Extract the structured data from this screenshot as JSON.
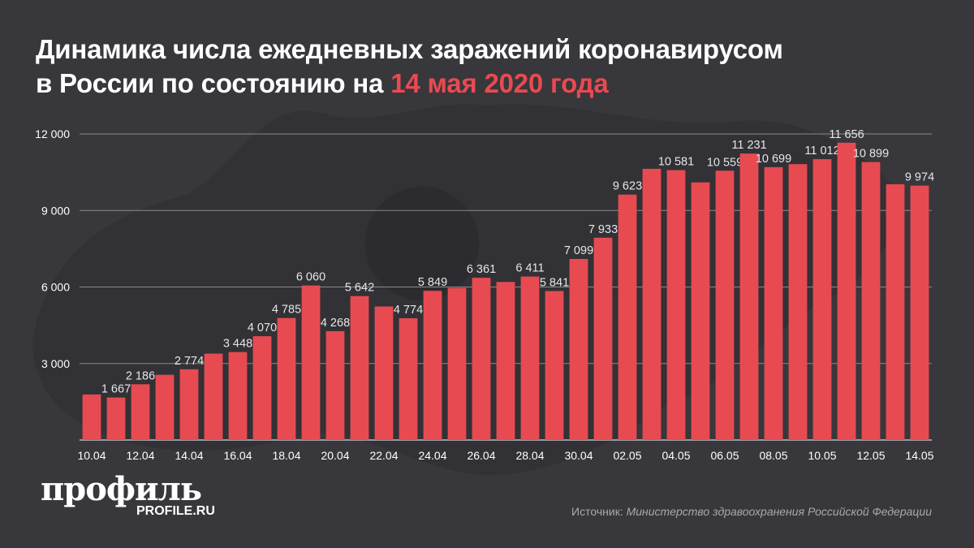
{
  "title": {
    "line1": "Динамика числа ежедневных заражений коронавирусом",
    "line2_prefix": "в России по состоянию на ",
    "line2_highlight": "14 мая 2020 года"
  },
  "colors": {
    "background": "#38373b",
    "bar": "#e84a51",
    "highlight": "#e84a51",
    "text": "#ffffff",
    "grid": "#8a898d"
  },
  "chart_data": {
    "type": "bar",
    "title": "Динамика числа ежедневных заражений коронавирусом в России по состоянию на 14 мая 2020 года",
    "categories": [
      "10.04",
      "11.04",
      "12.04",
      "13.04",
      "14.04",
      "15.04",
      "16.04",
      "17.04",
      "18.04",
      "19.04",
      "20.04",
      "21.04",
      "22.04",
      "23.04",
      "24.04",
      "25.04",
      "26.04",
      "27.04",
      "28.04",
      "29.04",
      "30.04",
      "01.05",
      "02.05",
      "03.05",
      "04.05",
      "05.05",
      "06.05",
      "07.05",
      "08.05",
      "09.05",
      "10.05",
      "11.05",
      "12.05",
      "13.05",
      "14.05"
    ],
    "tick_labels": [
      "10.04",
      "12.04",
      "14.04",
      "16.04",
      "18.04",
      "20.04",
      "22.04",
      "24.04",
      "26.04",
      "28.04",
      "30.04",
      "02.05",
      "04.05",
      "06.05",
      "08.05",
      "10.05",
      "12.05",
      "14.05"
    ],
    "values": [
      1786,
      1667,
      2186,
      2558,
      2774,
      3388,
      3448,
      4070,
      4785,
      6060,
      4268,
      5642,
      5236,
      4774,
      5849,
      5966,
      6361,
      6198,
      6411,
      5841,
      7099,
      7933,
      9623,
      10633,
      10581,
      10102,
      10559,
      11231,
      10699,
      10817,
      11012,
      11656,
      10899,
      10028,
      9974
    ],
    "data_labels": [
      null,
      "1 667",
      "2 186",
      null,
      "2 774",
      null,
      "3 448",
      "4 070",
      "4 785",
      "6 060",
      "4 268",
      "5 642",
      null,
      "4 774",
      "5 849",
      null,
      "6 361",
      null,
      "6 411",
      "5 841",
      "7 099",
      "7 933",
      "9 623",
      null,
      "10 581",
      null,
      "10 559",
      "11 231",
      "10 699",
      null,
      "11 012",
      "11 656",
      "10 899",
      null,
      "9 974"
    ],
    "yticks": [
      3000,
      6000,
      9000,
      12000
    ],
    "ytick_labels": [
      "3 000",
      "6 000",
      "9 000",
      "12 000"
    ],
    "ylim": [
      0,
      12000
    ],
    "grid": true,
    "xlabel": "",
    "ylabel": ""
  },
  "logo": {
    "main": "профиль",
    "sub": "PROFILE.RU"
  },
  "source": {
    "prefix": "Источник: ",
    "name": "Министерство здравоохранения Российской Федерации"
  }
}
